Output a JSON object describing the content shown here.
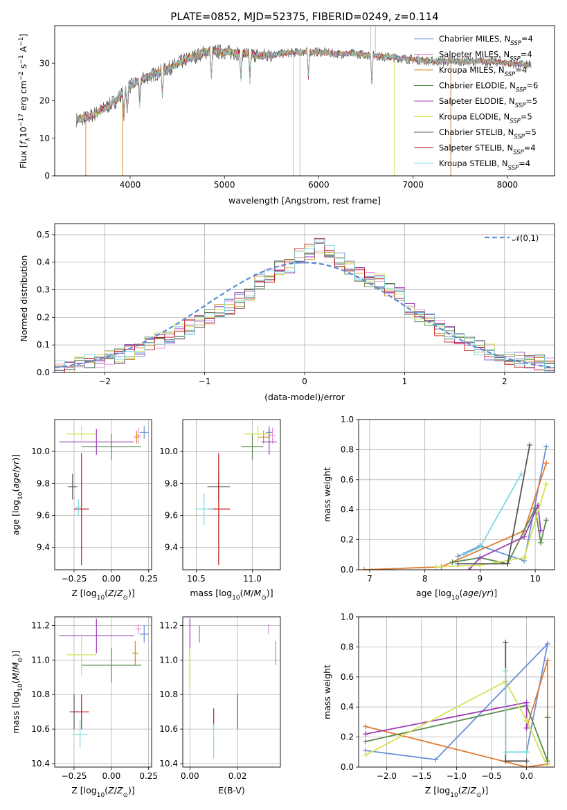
{
  "page_title": "PLATE=0852, MJD=52375, FIBERID=0249, z=0.114",
  "colors": {
    "Chabrier MILES": "#6a8fd8",
    "Salpeter MILES": "#e58fd8",
    "Kroupa MILES": "#d98a1d",
    "Chabrier ELODIE": "#5a8a50",
    "Salpeter ELODIE": "#9b3cb5",
    "Kroupa ELODIE": "#d4e157",
    "Chabrier STELIB": "#555555",
    "Salpeter STELIB": "#c01818",
    "Kroupa STELIB": "#7fd8e0",
    "Kroupa MILES line": "#e07a30"
  },
  "chart_data": [
    {
      "id": "spectrum",
      "type": "line",
      "title": "PLATE=0852, MJD=52375, FIBERID=0249, z=0.114",
      "xlabel": "wavelength [Angstrom, rest frame]",
      "ylabel": "Flux [f_λ10^-17 erg cm^-2 s^-1 A^-1]",
      "xlim": [
        3200,
        8500
      ],
      "ylim": [
        0,
        40
      ],
      "xticks": [
        4000,
        5000,
        6000,
        7000,
        8000
      ],
      "yticks": [
        0,
        10,
        20,
        30
      ],
      "grid": false,
      "legend_position": "top-right",
      "legend": [
        "Chabrier MILES, N_SSP=4",
        "Salpeter MILES, N_SSP=4",
        "Kroupa MILES, N_SSP=4",
        "Chabrier ELODIE, N_SSP=6",
        "Salpeter ELODIE, N_SSP=5",
        "Kroupa ELODIE, N_SSP=5",
        "Chabrier STELIB, N_SSP=5",
        "Salpeter STELIB, N_SSP=4",
        "Kroupa STELIB, N_SSP=4"
      ],
      "continuum": {
        "x": [
          3430,
          3550,
          3700,
          3850,
          3950,
          4100,
          4250,
          4400,
          4600,
          4800,
          5000,
          5200,
          5400,
          5600,
          5800,
          6000,
          6200,
          6400,
          6600,
          6800,
          7000,
          7200,
          7400,
          7600,
          7800,
          8000,
          8200,
          8250
        ],
        "y": [
          15,
          15.5,
          17.5,
          20,
          23,
          25.5,
          27,
          28.5,
          31,
          33,
          33,
          32.5,
          32,
          32.5,
          33,
          33,
          32.5,
          32.5,
          32,
          31.5,
          31,
          30.5,
          30.5,
          30.5,
          30.5,
          30,
          29.5,
          29.5
        ]
      },
      "features": [
        {
          "name": "absorption",
          "x": [
            3934,
            3969,
            4102,
            4341,
            4861,
            5175,
            5270,
            5890,
            6563
          ]
        },
        {
          "name": "masked-drops",
          "x": [
            3530,
            3920,
            5730,
            5800,
            6800,
            7400
          ]
        }
      ]
    },
    {
      "id": "residuals",
      "type": "histogram",
      "xlabel": "(data-model)/error",
      "ylabel": "Normed distribution",
      "xlim": [
        -2.5,
        2.5
      ],
      "ylim": [
        0,
        0.54
      ],
      "xticks": [
        -2,
        -1,
        0,
        1,
        2
      ],
      "yticks": [
        0.0,
        0.1,
        0.2,
        0.3,
        0.4,
        0.5
      ],
      "grid": true,
      "legend_position": "top-right",
      "legend": [
        "𝒩(0,1)"
      ],
      "bin_edges": [
        -2.5,
        -2.4,
        -2.3,
        -2.2,
        -2.1,
        -2.0,
        -1.9,
        -1.8,
        -1.7,
        -1.6,
        -1.5,
        -1.4,
        -1.3,
        -1.2,
        -1.1,
        -1.0,
        -0.9,
        -0.8,
        -0.7,
        -0.6,
        -0.5,
        -0.4,
        -0.3,
        -0.2,
        -0.1,
        0.0,
        0.1,
        0.2,
        0.3,
        0.4,
        0.5,
        0.6,
        0.7,
        0.8,
        0.9,
        1.0,
        1.1,
        1.2,
        1.3,
        1.4,
        1.5,
        1.6,
        1.7,
        1.8,
        1.9,
        2.0,
        2.1,
        2.2,
        2.3,
        2.4,
        2.5
      ],
      "base_values": [
        0.015,
        0.02,
        0.028,
        0.035,
        0.04,
        0.05,
        0.06,
        0.075,
        0.085,
        0.1,
        0.115,
        0.13,
        0.15,
        0.165,
        0.18,
        0.2,
        0.22,
        0.24,
        0.26,
        0.29,
        0.33,
        0.35,
        0.38,
        0.39,
        0.42,
        0.44,
        0.46,
        0.44,
        0.41,
        0.38,
        0.36,
        0.34,
        0.33,
        0.3,
        0.28,
        0.24,
        0.21,
        0.19,
        0.16,
        0.14,
        0.12,
        0.1,
        0.09,
        0.075,
        0.065,
        0.055,
        0.045,
        0.04,
        0.035,
        0.03
      ]
    },
    {
      "id": "age-vs-Z",
      "type": "errorbar",
      "xlabel": "Z [log10(Z/Z☉)]",
      "ylabel": "age [log10(age/yr)]",
      "xlim": [
        -0.38,
        0.27
      ],
      "ylim": [
        9.26,
        10.2
      ],
      "xticks": [
        -0.25,
        0.0,
        0.25
      ],
      "yticks": [
        9.4,
        9.6,
        9.8,
        10.0
      ],
      "grid": true,
      "points": [
        {
          "s": "Chabrier MILES",
          "x": 0.22,
          "y": 10.12,
          "xerr": 0.03,
          "yerr": 0.04
        },
        {
          "s": "Salpeter MILES",
          "x": 0.18,
          "y": 10.1,
          "xerr": 0.02,
          "yerr": 0.05
        },
        {
          "s": "Kroupa MILES",
          "x": 0.17,
          "y": 10.09,
          "xerr": 0.02,
          "yerr": 0.04
        },
        {
          "s": "Chabrier ELODIE",
          "x": 0.0,
          "y": 10.03,
          "xerr": 0.2,
          "yerr": 0.08
        },
        {
          "s": "Salpeter ELODIE",
          "x": -0.1,
          "y": 10.06,
          "xerr": 0.25,
          "yerr": 0.08
        },
        {
          "s": "Kroupa ELODIE",
          "x": -0.2,
          "y": 10.11,
          "xerr": 0.1,
          "yerr": 0.05
        },
        {
          "s": "Chabrier STELIB",
          "x": -0.26,
          "y": 9.78,
          "xerr": 0.03,
          "yerr": 0.08
        },
        {
          "s": "Salpeter STELIB",
          "x": -0.2,
          "y": 9.64,
          "xerr": 0.05,
          "yerr": 0.35
        },
        {
          "s": "Kroupa STELIB",
          "x": -0.22,
          "y": 9.65,
          "xerr": 0.02,
          "yerr": 0.05
        }
      ]
    },
    {
      "id": "age-vs-mass",
      "type": "errorbar",
      "xlabel": "mass [log10(M/M☉)]",
      "ylabel": "",
      "xlim": [
        10.38,
        11.25
      ],
      "ylim": [
        9.26,
        10.2
      ],
      "xticks": [
        10.5,
        11.0
      ],
      "yticks": [
        9.4,
        9.6,
        9.8,
        10.0
      ],
      "grid": true,
      "points": [
        {
          "s": "Chabrier MILES",
          "x": 11.15,
          "y": 10.12,
          "xerr": 0.03,
          "yerr": 0.04
        },
        {
          "s": "Salpeter MILES",
          "x": 11.18,
          "y": 10.1,
          "xerr": 0.03,
          "yerr": 0.05
        },
        {
          "s": "Kroupa MILES",
          "x": 11.1,
          "y": 10.09,
          "xerr": 0.05,
          "yerr": 0.04
        },
        {
          "s": "Chabrier ELODIE",
          "x": 11.0,
          "y": 10.03,
          "xerr": 0.1,
          "yerr": 0.08
        },
        {
          "s": "Salpeter ELODIE",
          "x": 11.15,
          "y": 10.06,
          "xerr": 0.07,
          "yerr": 0.08
        },
        {
          "s": "Kroupa ELODIE",
          "x": 11.05,
          "y": 10.11,
          "xerr": 0.12,
          "yerr": 0.05
        },
        {
          "s": "Chabrier STELIB",
          "x": 10.7,
          "y": 9.78,
          "xerr": 0.1,
          "yerr": 0.08
        },
        {
          "s": "Salpeter STELIB",
          "x": 10.7,
          "y": 9.64,
          "xerr": 0.1,
          "yerr": 0.35
        },
        {
          "s": "Kroupa STELIB",
          "x": 10.57,
          "y": 9.64,
          "xerr": 0.08,
          "yerr": 0.1
        }
      ]
    },
    {
      "id": "massweight-vs-age",
      "type": "line",
      "xlabel": "age [log10(age/yr)]",
      "ylabel": "mass weight",
      "xlim": [
        6.8,
        10.35
      ],
      "ylim": [
        0,
        1.0
      ],
      "xticks": [
        7,
        8,
        9,
        10
      ],
      "yticks": [
        0.0,
        0.2,
        0.4,
        0.6,
        0.8,
        1.0
      ],
      "grid": true,
      "series": [
        {
          "s": "Chabrier MILES",
          "x": [
            8.6,
            9.0,
            9.8,
            10.2
          ],
          "y": [
            0.09,
            0.16,
            0.06,
            0.82
          ]
        },
        {
          "s": "Kroupa MILES",
          "x": [
            6.9,
            8.3,
            9.8,
            10.2
          ],
          "y": [
            0.0,
            0.02,
            0.26,
            0.71
          ]
        },
        {
          "s": "Chabrier ELODIE",
          "x": [
            8.5,
            9.0,
            9.5,
            10.0,
            10.1,
            10.2
          ],
          "y": [
            0.05,
            0.08,
            0.04,
            0.41,
            0.18,
            0.33
          ]
        },
        {
          "s": "Salpeter ELODIE",
          "x": [
            8.8,
            9.0,
            9.8,
            10.05,
            10.1
          ],
          "y": [
            0.0,
            0.08,
            0.22,
            0.43,
            0.26
          ]
        },
        {
          "s": "Kroupa ELODIE",
          "x": [
            8.2,
            9.0,
            9.8,
            10.2
          ],
          "y": [
            0.02,
            0.03,
            0.08,
            0.57
          ]
        },
        {
          "s": "Chabrier STELIB",
          "x": [
            8.6,
            9.5,
            9.9
          ],
          "y": [
            0.04,
            0.04,
            0.83
          ]
        },
        {
          "s": "Kroupa STELIB",
          "x": [
            8.7,
            9.0,
            9.75
          ],
          "y": [
            0.1,
            0.15,
            0.64
          ]
        }
      ]
    },
    {
      "id": "mass-vs-Z",
      "type": "errorbar",
      "xlabel": "Z [log10(Z/Z☉)]",
      "ylabel": "mass [log10(M/M☉)]",
      "xlim": [
        -0.38,
        0.27
      ],
      "ylim": [
        10.38,
        11.25
      ],
      "xticks": [
        -0.25,
        0.0,
        0.25
      ],
      "yticks": [
        10.4,
        10.6,
        10.8,
        11.0,
        11.2
      ],
      "grid": true,
      "points": [
        {
          "s": "Chabrier MILES",
          "x": 0.22,
          "y": 11.15,
          "xerr": 0.03,
          "yerr": 0.05
        },
        {
          "s": "Salpeter MILES",
          "x": 0.18,
          "y": 11.18,
          "xerr": 0.02,
          "yerr": 0.03
        },
        {
          "s": "Kroupa MILES",
          "x": 0.16,
          "y": 11.04,
          "xerr": 0.02,
          "yerr": 0.07
        },
        {
          "s": "Chabrier ELODIE",
          "x": 0.0,
          "y": 10.97,
          "xerr": 0.2,
          "yerr": 0.1
        },
        {
          "s": "Salpeter ELODIE",
          "x": -0.1,
          "y": 11.14,
          "xerr": 0.25,
          "yerr": 0.1
        },
        {
          "s": "Kroupa ELODIE",
          "x": -0.2,
          "y": 11.03,
          "xerr": 0.1,
          "yerr": 0.12
        },
        {
          "s": "Chabrier STELIB",
          "x": -0.25,
          "y": 10.7,
          "xerr": 0.03,
          "yerr": 0.1
        },
        {
          "s": "Salpeter STELIB",
          "x": -0.2,
          "y": 10.7,
          "xerr": 0.05,
          "yerr": 0.1
        },
        {
          "s": "Kroupa STELIB",
          "x": -0.21,
          "y": 10.57,
          "xerr": 0.05,
          "yerr": 0.08
        }
      ]
    },
    {
      "id": "mass-vs-EBV",
      "type": "errorbar",
      "xlabel": "E(B-V)",
      "ylabel": "",
      "xlim": [
        -0.003,
        0.038
      ],
      "ylim": [
        10.38,
        11.25
      ],
      "xticks": [
        0.0,
        0.02
      ],
      "yticks": [
        10.4,
        10.6,
        10.8,
        11.0,
        11.2
      ],
      "grid": true,
      "points": [
        {
          "s": "Chabrier MILES",
          "x": 0.004,
          "y": 11.15,
          "xerr": 0.0,
          "yerr": 0.05
        },
        {
          "s": "Salpeter MILES",
          "x": 0.033,
          "y": 11.18,
          "xerr": 0.0,
          "yerr": 0.03
        },
        {
          "s": "Kroupa MILES",
          "x": 0.036,
          "y": 11.04,
          "xerr": 0.0,
          "yerr": 0.07
        },
        {
          "s": "Chabrier ELODIE",
          "x": 0.0,
          "y": 10.97,
          "xerr": 0.0,
          "yerr": 0.1
        },
        {
          "s": "Salpeter ELODIE",
          "x": 0.0,
          "y": 11.14,
          "xerr": 0.0,
          "yerr": 0.1
        },
        {
          "s": "Kroupa ELODIE",
          "x": 0.0,
          "y": 10.95,
          "xerr": 0.0,
          "yerr": 0.12
        },
        {
          "s": "Chabrier STELIB",
          "x": 0.02,
          "y": 10.7,
          "xerr": 0.0,
          "yerr": 0.1
        },
        {
          "s": "Salpeter STELIB",
          "x": 0.01,
          "y": 10.67,
          "xerr": 0.0,
          "yerr": 0.05
        },
        {
          "s": "Kroupa STELIB",
          "x": 0.01,
          "y": 10.53,
          "xerr": 0.0,
          "yerr": 0.1
        }
      ]
    },
    {
      "id": "massweight-vs-Z",
      "type": "line",
      "xlabel": "Z [log10(Z/Z☉)]",
      "ylabel": "mass weight",
      "xlim": [
        -2.4,
        0.4
      ],
      "ylim": [
        0,
        1.0
      ],
      "xticks": [
        -2.0,
        -1.5,
        -1.0,
        -0.5,
        0.0
      ],
      "yticks": [
        0.0,
        0.2,
        0.4,
        0.6,
        0.8,
        1.0
      ],
      "grid": true,
      "series": [
        {
          "s": "Chabrier MILES",
          "x": [
            -2.3,
            -1.3,
            0.3,
            0.0
          ],
          "y": [
            0.11,
            0.05,
            0.82,
            0.1
          ]
        },
        {
          "s": "Kroupa MILES",
          "x": [
            -2.3,
            0.0,
            0.3,
            0.3,
            0.0
          ],
          "y": [
            0.27,
            0.0,
            0.02,
            0.71,
            0.26
          ]
        },
        {
          "s": "Chabrier ELODIE",
          "x": [
            -2.3,
            0.0,
            0.3,
            0.3
          ],
          "y": [
            0.17,
            0.41,
            0.04,
            0.33
          ]
        },
        {
          "s": "Salpeter ELODIE",
          "x": [
            -2.3,
            0.0,
            0.0
          ],
          "y": [
            0.22,
            0.43,
            0.26
          ]
        },
        {
          "s": "Kroupa ELODIE",
          "x": [
            -2.3,
            -0.3,
            0.0,
            0.3
          ],
          "y": [
            0.08,
            0.57,
            0.31,
            0.0
          ]
        },
        {
          "s": "Chabrier STELIB",
          "x": [
            -0.3,
            -0.3,
            0.0
          ],
          "y": [
            0.83,
            0.04,
            0.04
          ]
        },
        {
          "s": "Kroupa STELIB",
          "x": [
            -0.3,
            -0.3,
            0.0
          ],
          "y": [
            0.64,
            0.1,
            0.1
          ]
        }
      ]
    }
  ]
}
